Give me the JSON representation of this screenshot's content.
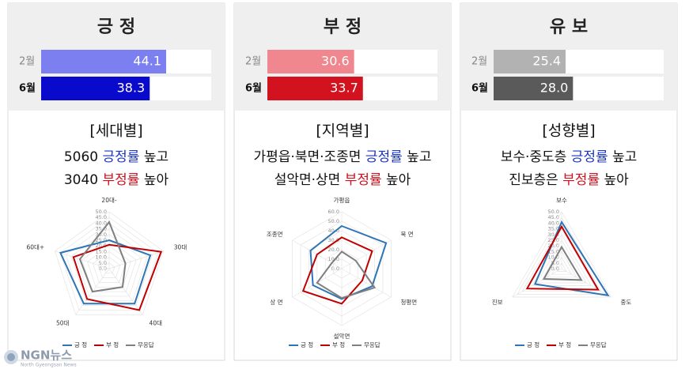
{
  "chart_data": [
    {
      "type": "bar",
      "title": "긍 정",
      "categories": [
        "2월",
        "6월"
      ],
      "values": [
        44.1,
        38.3
      ],
      "colors": [
        "#7b7ff0",
        "#0a0acc"
      ],
      "xlim": [
        0,
        60
      ]
    },
    {
      "type": "bar",
      "title": "부 정",
      "categories": [
        "2월",
        "6월"
      ],
      "values": [
        30.6,
        33.7
      ],
      "colors": [
        "#f0878f",
        "#d2121e"
      ],
      "xlim": [
        0,
        60
      ]
    },
    {
      "type": "bar",
      "title": "유 보",
      "categories": [
        "2월",
        "6월"
      ],
      "values": [
        25.4,
        28.0
      ],
      "value_labels": [
        "25.4",
        "28.0"
      ],
      "colors": [
        "#b2b2b2",
        "#5a5a5a"
      ],
      "xlim": [
        0,
        60
      ]
    },
    {
      "type": "radar",
      "title": "[세대별]",
      "headline": [
        [
          {
            "text": "5060 "
          },
          {
            "text": "긍정률",
            "color": "#1b35c4"
          },
          {
            "text": " 높고"
          }
        ],
        [
          {
            "text": "3040 "
          },
          {
            "text": "부정률",
            "color": "#d0101c"
          },
          {
            "text": " 높아"
          }
        ]
      ],
      "categories": [
        "20대-",
        "30대",
        "40대",
        "50대",
        "60대+"
      ],
      "series": [
        {
          "name": "긍 정",
          "color": "#2e75b6",
          "values": [
            25,
            38,
            38,
            38,
            45
          ]
        },
        {
          "name": "부 정",
          "color": "#c00000",
          "values": [
            21,
            48,
            45,
            33,
            33
          ]
        },
        {
          "name": "무응답",
          "color": "#7f7f7f",
          "values": [
            41,
            15,
            20,
            25,
            27
          ]
        }
      ],
      "rlim": [
        0,
        50
      ],
      "rticks": [
        {
          "value": 0,
          "label": "0.0"
        },
        {
          "value": 5,
          "label": "5.0"
        },
        {
          "value": 10,
          "label": "10.0"
        },
        {
          "value": 15,
          "label": "15.0"
        },
        {
          "value": 20,
          "label": "20.0"
        },
        {
          "value": 25,
          "label": "25.0"
        },
        {
          "value": 30,
          "label": "30.0"
        },
        {
          "value": 35,
          "label": "35.0"
        },
        {
          "value": 40,
          "label": "40.0"
        },
        {
          "value": 45,
          "label": "45.0"
        },
        {
          "value": 50,
          "label": "50.0"
        }
      ]
    },
    {
      "type": "radar",
      "title": "[지역별]",
      "headline": [
        [
          {
            "text": "가평읍·북면·조종면 "
          },
          {
            "text": "긍정률",
            "color": "#1b35c4"
          },
          {
            "text": " 높고"
          }
        ],
        [
          {
            "text": "설악면·상면 "
          },
          {
            "text": "부정률",
            "color": "#d0101c"
          },
          {
            "text": " 높아"
          }
        ]
      ],
      "categories": [
        "가평읍",
        "북 면",
        "청평면",
        "설악면",
        "상 면",
        "조종면"
      ],
      "series": [
        {
          "name": "긍 정",
          "color": "#2e75b6",
          "values": [
            45,
            54,
            37,
            32,
            35,
            38
          ]
        },
        {
          "name": "부 정",
          "color": "#c00000",
          "values": [
            33,
            37,
            25,
            37,
            47,
            30
          ]
        },
        {
          "name": "무응답",
          "color": "#7f7f7f",
          "values": [
            18,
            17,
            40,
            31,
            30,
            12
          ]
        }
      ],
      "rlim": [
        0,
        60
      ],
      "rticks": [
        {
          "value": 0,
          "label": "0.0"
        },
        {
          "value": 10,
          "label": "10.0"
        },
        {
          "value": 20,
          "label": "20.0"
        },
        {
          "value": 30,
          "label": "30.0"
        },
        {
          "value": 40,
          "label": "40.0"
        },
        {
          "value": 50,
          "label": "50.0"
        },
        {
          "value": 60,
          "label": "60.0"
        }
      ]
    },
    {
      "type": "radar",
      "title": "[성향별]",
      "headline": [
        [
          {
            "text": "보수·중도층 "
          },
          {
            "text": "긍정률",
            "color": "#1b35c4"
          },
          {
            "text": " 높고"
          }
        ],
        [
          {
            "text": "진보층은 "
          },
          {
            "text": "부정률",
            "color": "#d0101c"
          },
          {
            "text": " 높아"
          }
        ]
      ],
      "categories": [
        "보수",
        "중도",
        "진보"
      ],
      "series": [
        {
          "name": "긍 정",
          "color": "#2e75b6",
          "values": [
            41,
            47,
            27
          ]
        },
        {
          "name": "부 정",
          "color": "#c00000",
          "values": [
            37,
            37,
            35
          ]
        },
        {
          "name": "무응답",
          "color": "#7f7f7f",
          "values": [
            19,
            20,
            18
          ]
        }
      ],
      "rlim": [
        0,
        50
      ],
      "rticks": [
        {
          "value": 0,
          "label": "0.0"
        },
        {
          "value": 5,
          "label": "5.0"
        },
        {
          "value": 10,
          "label": "10.0"
        },
        {
          "value": 15,
          "label": "15.0"
        },
        {
          "value": 20,
          "label": "20.0"
        },
        {
          "value": 25,
          "label": "25.0"
        },
        {
          "value": 30,
          "label": "30.0"
        },
        {
          "value": 35,
          "label": "35.0"
        },
        {
          "value": 40,
          "label": "40.0"
        },
        {
          "value": 45,
          "label": "45.0"
        },
        {
          "value": 50,
          "label": "50.0"
        }
      ]
    }
  ],
  "footer": {
    "brand": "NGN뉴스",
    "tagline": "North Gyeongsan News"
  }
}
